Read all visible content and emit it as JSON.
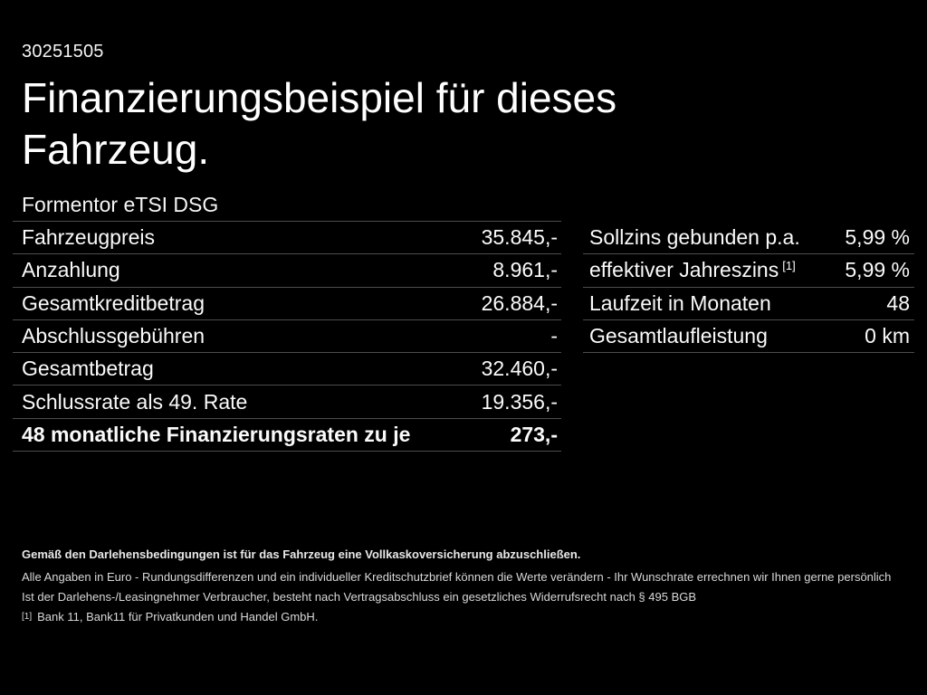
{
  "page": {
    "doc_number": "30251505",
    "title_line1": "Finanzierungsbeispiel für dieses",
    "title_line2": "Fahrzeug.",
    "model": "Formentor eTSI DSG"
  },
  "left_table": {
    "rows": [
      {
        "label": "Fahrzeugpreis",
        "value": "35.845,-"
      },
      {
        "label": "Anzahlung",
        "value": "8.961,-"
      },
      {
        "label": "Gesamtkreditbetrag",
        "value": "26.884,-"
      },
      {
        "label": "Abschlussgebühren",
        "value": "-"
      },
      {
        "label": "Gesamtbetrag",
        "value": "32.460,-"
      },
      {
        "label": "Schlussrate als 49. Rate",
        "value": "19.356,-"
      },
      {
        "label": "48 monatliche Finanzierungsraten zu je",
        "value": "273,-"
      }
    ]
  },
  "right_table": {
    "rows": [
      {
        "label": "Sollzins gebunden p.a.",
        "sup": "",
        "value": "5,99 %"
      },
      {
        "label": "effektiver Jahreszins",
        "sup": "[1]",
        "value": "5,99 %"
      },
      {
        "label": "Laufzeit in Monaten",
        "sup": "",
        "value": "48"
      },
      {
        "label": "Gesamtlaufleistung",
        "sup": "",
        "value": "0 km"
      }
    ]
  },
  "disclaimer": {
    "line1": "Gemäß den Darlehensbedingungen ist für das Fahrzeug eine Vollkaskoversicherung abzuschließen.",
    "line2": "Alle Angaben in Euro - Rundungsdifferenzen und ein individueller Kreditschutzbrief können die Werte verändern - Ihr Wunschrate errechnen wir Ihnen gerne persönlich",
    "line3": "Ist der Darlehens-/Leasingnehmer Verbraucher, besteht nach Vertragsabschluss ein gesetzliches Widerrufsrecht nach § 495 BGB",
    "footnote_marker": "[1]",
    "footnote_text": "Bank 11, Bank11 für Privatkunden und Handel GmbH."
  },
  "colors": {
    "background": "#000000",
    "text": "#ffffff",
    "divider": "#4d4d4d",
    "fineprint": "#d9d9d9"
  }
}
